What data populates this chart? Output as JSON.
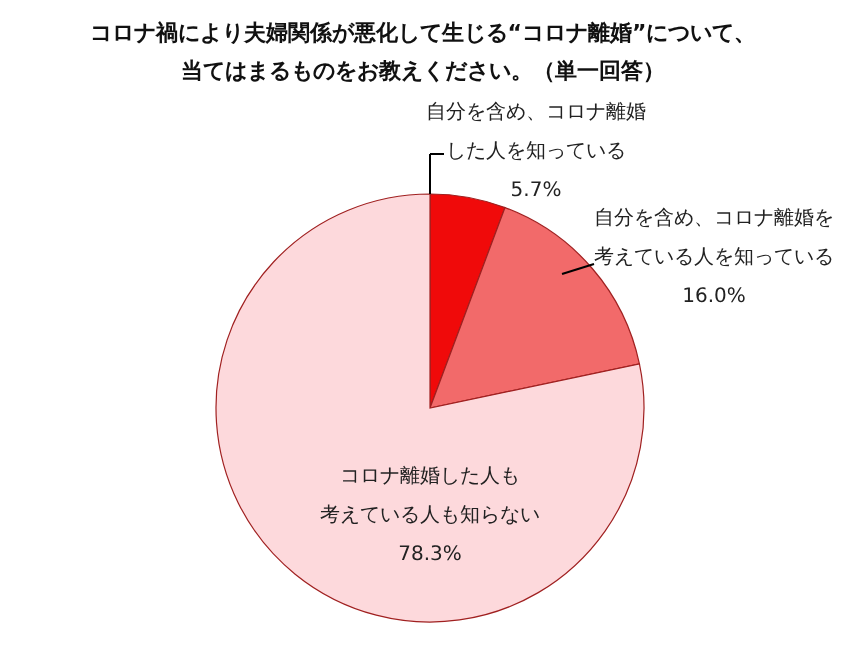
{
  "chart_data": {
    "type": "pie",
    "title": "コロナ禍により夫婦関係が悪化して生じる“コロナ離婚”について、当てはまるものをお教えください。（単一回答）",
    "categories": [
      "自分を含め、コロナ離婚した人を知っている",
      "自分を含め、コロナ離婚を考えている人を知っている",
      "コロナ離婚した人も考えている人も知らない"
    ],
    "values": [
      5.7,
      16.0,
      78.3
    ],
    "colors": [
      "#f00a0a",
      "#f26a6a",
      "#fdd9dc"
    ],
    "value_labels": [
      "5.7%",
      "16.0%",
      "78.3%"
    ]
  }
}
